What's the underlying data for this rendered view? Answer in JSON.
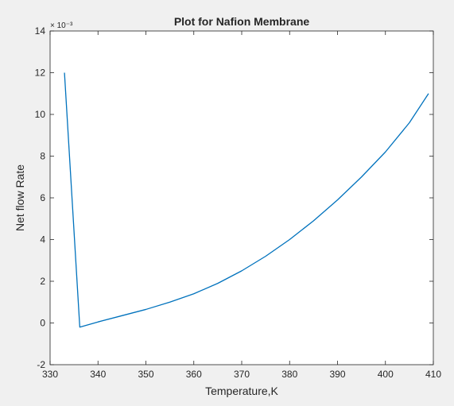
{
  "chart_data": {
    "type": "line",
    "title": "Plot for Nafion Membrane",
    "xlabel": "Temperature,K",
    "ylabel": "Net flow Rate",
    "y_exponent": "× 10⁻³",
    "xlim": [
      330,
      410
    ],
    "ylim": [
      -2,
      14
    ],
    "xticks": [
      330,
      340,
      350,
      360,
      370,
      380,
      390,
      400,
      410
    ],
    "yticks": [
      -2,
      0,
      2,
      4,
      6,
      8,
      10,
      12,
      14
    ],
    "grid": false,
    "series": [
      {
        "color": "#0072bd",
        "x": [
          333,
          336.2,
          340,
          345,
          350,
          355,
          360,
          365,
          370,
          375,
          380,
          385,
          390,
          395,
          400,
          405,
          409
        ],
        "y": [
          12.0,
          -0.2,
          0.05,
          0.35,
          0.65,
          1.0,
          1.4,
          1.9,
          2.5,
          3.2,
          4.0,
          4.9,
          5.9,
          7.0,
          8.2,
          9.6,
          11.0
        ]
      }
    ]
  },
  "colors": {
    "background": "#f0f0f0",
    "axes_background": "#ffffff",
    "axis_line": "#262626",
    "series": "#0072bd"
  }
}
